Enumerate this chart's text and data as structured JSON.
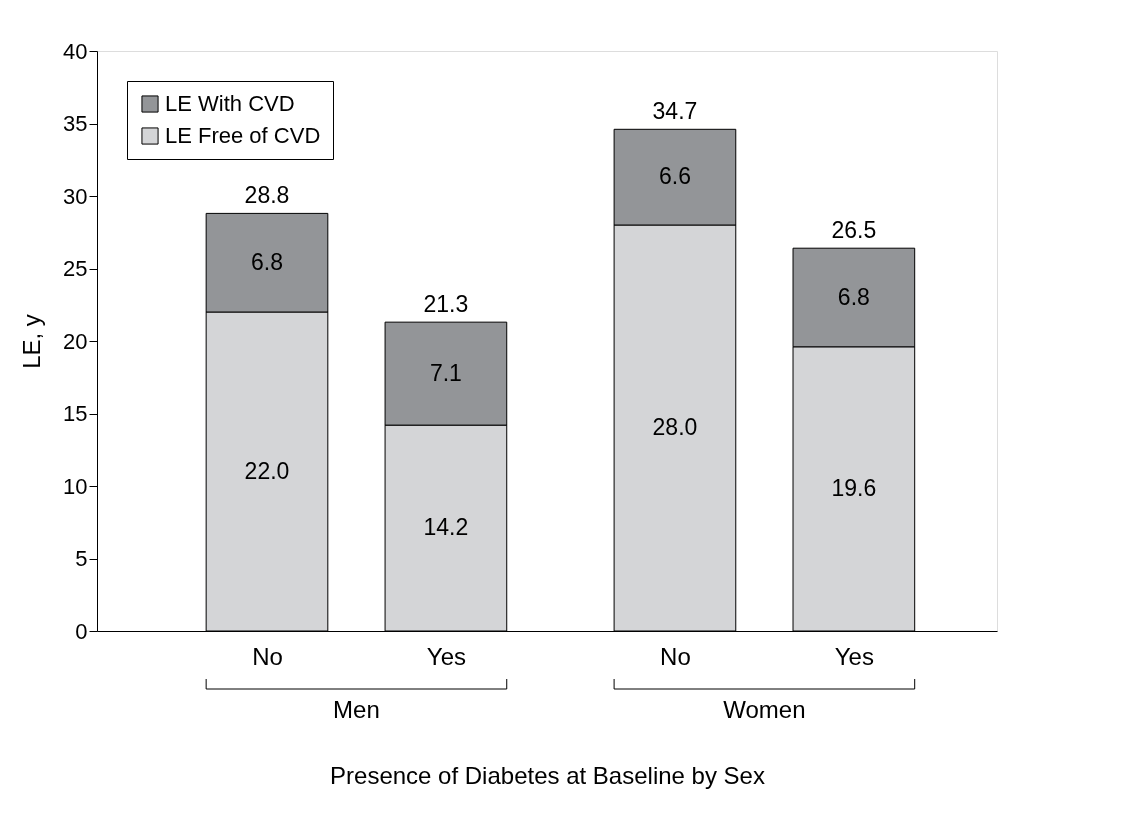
{
  "chart_data": {
    "type": "bar",
    "stacked": true,
    "xlabel": "Presence of Diabetes at Baseline by Sex",
    "ylabel": "LE, y",
    "categories": [
      "No",
      "Yes",
      "No",
      "Yes"
    ],
    "series": [
      {
        "name": "LE Free of CVD",
        "color": "#d4d5d7",
        "values": [
          22.0,
          14.2,
          28.0,
          19.6
        ],
        "value_labels": [
          "22.0",
          "14.2",
          "28.0",
          "19.6"
        ]
      },
      {
        "name": "LE With CVD",
        "color": "#939598",
        "values": [
          6.8,
          7.1,
          6.6,
          6.8
        ],
        "value_labels": [
          "6.8",
          "7.1",
          "6.6",
          "6.8"
        ]
      }
    ],
    "totals": [
      "28.8",
      "21.3",
      "34.7",
      "26.5"
    ],
    "annotations": [
      "Men",
      "Women"
    ],
    "ylim": [
      0,
      40
    ],
    "yticks": [
      0,
      5,
      10,
      15,
      20,
      25,
      30,
      35,
      40
    ],
    "grid": false,
    "legend": "top left"
  }
}
